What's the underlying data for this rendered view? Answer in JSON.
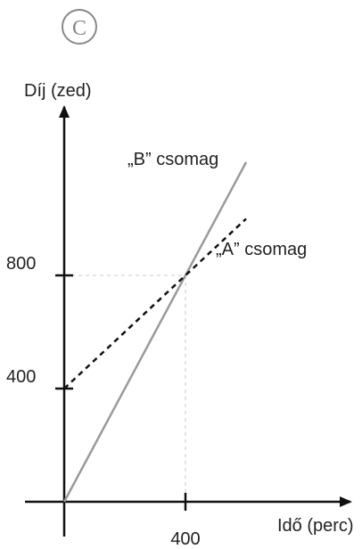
{
  "badge": {
    "letter": "C",
    "color": "#888888"
  },
  "chart_data": {
    "type": "line",
    "title": "",
    "xlabel": "Idő (perc)",
    "ylabel": "Díj (zed)",
    "xlim": [
      0,
      600
    ],
    "ylim": [
      0,
      1300
    ],
    "xticks": [
      400
    ],
    "yticks": [
      400,
      800
    ],
    "grid": false,
    "guide_point": {
      "x": 400,
      "y": 800
    },
    "series": [
      {
        "name": "„A” csomag",
        "style": "dashed",
        "color": "#111111",
        "x": [
          0,
          600
        ],
        "y": [
          400,
          1000
        ]
      },
      {
        "name": "„B” csomag",
        "style": "solid",
        "color": "#9a9a9a",
        "x": [
          0,
          600
        ],
        "y": [
          0,
          1200
        ]
      }
    ]
  }
}
